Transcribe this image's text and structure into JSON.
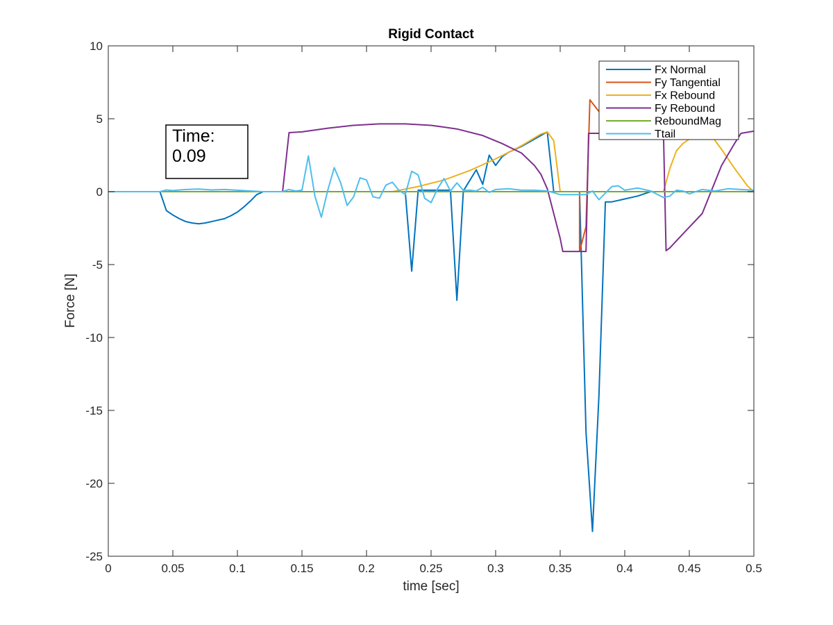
{
  "chart_data": {
    "type": "line",
    "title": "Rigid Contact",
    "xlabel": "time [sec]",
    "ylabel": "Force [N]",
    "xlim": [
      0,
      0.5
    ],
    "ylim": [
      -25,
      10
    ],
    "xticks": [
      0,
      0.05,
      0.1,
      0.15,
      0.2,
      0.25,
      0.3,
      0.35,
      0.4,
      0.45,
      0.5
    ],
    "yticks": [
      -25,
      -20,
      -15,
      -10,
      -5,
      0,
      5,
      10
    ],
    "xtick_labels": [
      "0",
      "0.05",
      "0.1",
      "0.15",
      "0.2",
      "0.25",
      "0.3",
      "0.35",
      "0.4",
      "0.45",
      "0.5"
    ],
    "ytick_labels": [
      "-25",
      "-20",
      "-15",
      "-10",
      "-5",
      "0",
      "5",
      "10"
    ],
    "grid": false,
    "legend_position": "top-right",
    "annotation": {
      "line1": "Time:",
      "line2": "0.09"
    },
    "series": [
      {
        "name": "Fx Normal",
        "color": "#0072BD",
        "points": [
          [
            0,
            0
          ],
          [
            0.04,
            0
          ],
          [
            0.045,
            -1.3
          ],
          [
            0.05,
            -1.6
          ],
          [
            0.055,
            -1.85
          ],
          [
            0.06,
            -2.05
          ],
          [
            0.065,
            -2.15
          ],
          [
            0.07,
            -2.2
          ],
          [
            0.075,
            -2.15
          ],
          [
            0.08,
            -2.05
          ],
          [
            0.085,
            -1.95
          ],
          [
            0.09,
            -1.85
          ],
          [
            0.095,
            -1.65
          ],
          [
            0.1,
            -1.4
          ],
          [
            0.105,
            -1.05
          ],
          [
            0.11,
            -0.65
          ],
          [
            0.115,
            -0.2
          ],
          [
            0.12,
            0
          ],
          [
            0.23,
            0
          ],
          [
            0.235,
            -5.45
          ],
          [
            0.24,
            0.1
          ],
          [
            0.265,
            0.1
          ],
          [
            0.27,
            -7.45
          ],
          [
            0.275,
            0.05
          ],
          [
            0.285,
            1.5
          ],
          [
            0.29,
            0.5
          ],
          [
            0.295,
            2.5
          ],
          [
            0.3,
            1.8
          ],
          [
            0.305,
            2.4
          ],
          [
            0.31,
            2.7
          ],
          [
            0.32,
            3.1
          ],
          [
            0.33,
            3.6
          ],
          [
            0.34,
            4.1
          ],
          [
            0.345,
            0
          ],
          [
            0.365,
            0
          ],
          [
            0.37,
            -16.5
          ],
          [
            0.375,
            -23.3
          ],
          [
            0.38,
            -14
          ],
          [
            0.385,
            -0.7
          ],
          [
            0.39,
            -0.7
          ],
          [
            0.4,
            -0.5
          ],
          [
            0.41,
            -0.3
          ],
          [
            0.42,
            0
          ],
          [
            0.5,
            0
          ]
        ]
      },
      {
        "name": "Fy Tangential",
        "color": "#D95319",
        "points": [
          [
            0,
            0
          ],
          [
            0.365,
            0
          ],
          [
            0.365,
            -4.1
          ],
          [
            0.37,
            -2.4
          ],
          [
            0.373,
            6.3
          ],
          [
            0.38,
            5.5
          ]
        ]
      },
      {
        "name": "Fx Rebound",
        "color": "#EDB120",
        "points": [
          [
            0,
            0
          ],
          [
            0.22,
            0
          ],
          [
            0.24,
            0.35
          ],
          [
            0.26,
            0.8
          ],
          [
            0.28,
            1.45
          ],
          [
            0.3,
            2.25
          ],
          [
            0.32,
            3.15
          ],
          [
            0.335,
            3.95
          ],
          [
            0.34,
            4.1
          ],
          [
            0.345,
            3.5
          ],
          [
            0.35,
            0
          ],
          [
            0.43,
            0
          ],
          [
            0.435,
            1.6
          ],
          [
            0.44,
            2.8
          ],
          [
            0.445,
            3.3
          ],
          [
            0.455,
            3.9
          ],
          [
            0.465,
            4.1
          ],
          [
            0.475,
            2.9
          ],
          [
            0.485,
            1.6
          ],
          [
            0.495,
            0.4
          ],
          [
            0.5,
            0
          ]
        ]
      },
      {
        "name": "Fy Rebound",
        "color": "#7E2F8E",
        "points": [
          [
            0,
            0
          ],
          [
            0.135,
            0
          ],
          [
            0.14,
            4.05
          ],
          [
            0.15,
            4.1
          ],
          [
            0.17,
            4.35
          ],
          [
            0.19,
            4.55
          ],
          [
            0.21,
            4.65
          ],
          [
            0.23,
            4.65
          ],
          [
            0.25,
            4.55
          ],
          [
            0.27,
            4.3
          ],
          [
            0.29,
            3.85
          ],
          [
            0.305,
            3.3
          ],
          [
            0.32,
            2.65
          ],
          [
            0.33,
            1.8
          ],
          [
            0.335,
            1.2
          ],
          [
            0.34,
            0.2
          ],
          [
            0.345,
            -1.5
          ],
          [
            0.35,
            -3.2
          ],
          [
            0.352,
            -4.1
          ],
          [
            0.37,
            -4.1
          ],
          [
            0.372,
            4.0
          ],
          [
            0.43,
            4.0
          ],
          [
            0.432,
            -4.05
          ],
          [
            0.435,
            -3.85
          ],
          [
            0.445,
            -2.9
          ],
          [
            0.46,
            -1.5
          ],
          [
            0.475,
            1.8
          ],
          [
            0.485,
            3.3
          ],
          [
            0.49,
            4.0
          ],
          [
            0.5,
            4.15
          ]
        ]
      },
      {
        "name": "ReboundMag",
        "color": "#77AC30",
        "points": [
          [
            0,
            0
          ],
          [
            0.5,
            0
          ]
        ]
      },
      {
        "name": "Ttail",
        "color": "#4DBEEE",
        "points": [
          [
            0,
            0
          ],
          [
            0.04,
            0
          ],
          [
            0.045,
            0.12
          ],
          [
            0.05,
            0.08
          ],
          [
            0.06,
            0.15
          ],
          [
            0.07,
            0.18
          ],
          [
            0.08,
            0.12
          ],
          [
            0.09,
            0.15
          ],
          [
            0.1,
            0.1
          ],
          [
            0.11,
            0.05
          ],
          [
            0.12,
            0
          ],
          [
            0.135,
            0
          ],
          [
            0.14,
            0.15
          ],
          [
            0.145,
            0.05
          ],
          [
            0.15,
            0.1
          ],
          [
            0.155,
            2.45
          ],
          [
            0.16,
            -0.3
          ],
          [
            0.165,
            -1.75
          ],
          [
            0.17,
            0.1
          ],
          [
            0.175,
            1.65
          ],
          [
            0.18,
            0.6
          ],
          [
            0.185,
            -0.95
          ],
          [
            0.19,
            -0.35
          ],
          [
            0.195,
            0.95
          ],
          [
            0.2,
            0.8
          ],
          [
            0.205,
            -0.35
          ],
          [
            0.21,
            -0.45
          ],
          [
            0.215,
            0.45
          ],
          [
            0.22,
            0.65
          ],
          [
            0.225,
            0.1
          ],
          [
            0.23,
            -0.2
          ],
          [
            0.235,
            1.4
          ],
          [
            0.24,
            1.15
          ],
          [
            0.245,
            -0.45
          ],
          [
            0.25,
            -0.75
          ],
          [
            0.255,
            0.2
          ],
          [
            0.26,
            0.9
          ],
          [
            0.265,
            0.05
          ],
          [
            0.27,
            0.6
          ],
          [
            0.275,
            0.1
          ],
          [
            0.28,
            0.1
          ],
          [
            0.285,
            0.05
          ],
          [
            0.29,
            0.3
          ],
          [
            0.295,
            -0.05
          ],
          [
            0.3,
            0.15
          ],
          [
            0.31,
            0.2
          ],
          [
            0.32,
            0.1
          ],
          [
            0.33,
            0.1
          ],
          [
            0.34,
            0.05
          ],
          [
            0.35,
            -0.2
          ],
          [
            0.36,
            -0.2
          ],
          [
            0.37,
            -0.2
          ],
          [
            0.375,
            0.05
          ],
          [
            0.38,
            -0.55
          ],
          [
            0.385,
            -0.1
          ],
          [
            0.39,
            0.35
          ],
          [
            0.395,
            0.4
          ],
          [
            0.4,
            0.1
          ],
          [
            0.41,
            0.25
          ],
          [
            0.42,
            0.05
          ],
          [
            0.43,
            -0.4
          ],
          [
            0.435,
            -0.3
          ],
          [
            0.44,
            0.1
          ],
          [
            0.445,
            0.05
          ],
          [
            0.45,
            -0.15
          ],
          [
            0.46,
            0.15
          ],
          [
            0.47,
            0.05
          ],
          [
            0.48,
            0.2
          ],
          [
            0.49,
            0.15
          ],
          [
            0.5,
            0.1
          ]
        ]
      }
    ]
  }
}
